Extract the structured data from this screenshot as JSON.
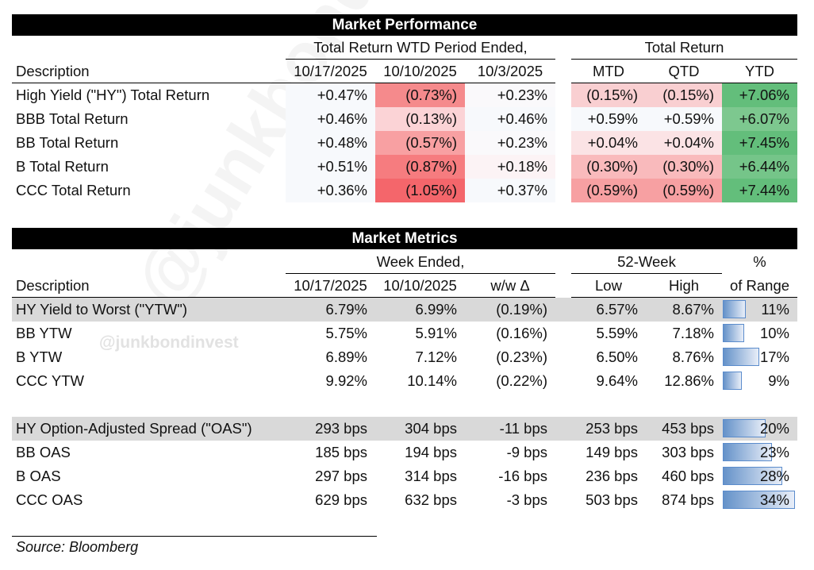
{
  "watermark": "@junkbondinvest",
  "performance": {
    "title": "Market Performance",
    "group1": "Total Return WTD Period Ended,",
    "group2": "Total Return",
    "headers": [
      "Description",
      "10/17/2025",
      "10/10/2025",
      "10/3/2025",
      "MTD",
      "QTD",
      "YTD"
    ],
    "rows": [
      {
        "label": "High Yield (\"HY\") Total Return",
        "values": [
          "+0.47%",
          "(0.73%)",
          "+0.23%",
          "(0.15%)",
          "(0.15%)",
          "+7.06%"
        ],
        "colors": [
          "#f7f9fc",
          "#f58a8c",
          "#faf9fb",
          "#f9cfd1",
          "#f9cfd1",
          "#63be7b"
        ]
      },
      {
        "label": "BBB Total Return",
        "values": [
          "+0.46%",
          "(0.13%)",
          "+0.46%",
          "+0.59%",
          "+0.59%",
          "+6.07%"
        ],
        "colors": [
          "#f7f9fc",
          "#fbd3d6",
          "#f7f9fc",
          "#f7f9fc",
          "#f7f9fc",
          "#7dc88f"
        ]
      },
      {
        "label": "BB Total Return",
        "values": [
          "+0.48%",
          "(0.57%)",
          "+0.23%",
          "+0.04%",
          "+0.04%",
          "+7.45%"
        ],
        "colors": [
          "#f7f9fc",
          "#f8a0a2",
          "#faf9fb",
          "#fbe3e5",
          "#fbe3e5",
          "#63be7b"
        ]
      },
      {
        "label": "B Total Return",
        "values": [
          "+0.51%",
          "(0.87%)",
          "+0.18%",
          "(0.30%)",
          "(0.30%)",
          "+6.44%"
        ],
        "colors": [
          "#f7f9fc",
          "#f67c7f",
          "#fcf3f5",
          "#f9babc",
          "#f9babc",
          "#75c589"
        ]
      },
      {
        "label": "CCC Total Return",
        "values": [
          "+0.36%",
          "(1.05%)",
          "+0.37%",
          "(0.59%)",
          "(0.59%)",
          "+7.44%"
        ],
        "colors": [
          "#f7f9fc",
          "#f4666b",
          "#f7f9fc",
          "#f7a0a2",
          "#f7a0a2",
          "#63be7b"
        ]
      }
    ]
  },
  "metrics": {
    "title": "Market Metrics",
    "group1": "Week Ended,",
    "group2": "52-Week",
    "group3": "%",
    "headers": [
      "Description",
      "10/17/2025",
      "10/10/2025",
      "w/w Δ",
      "Low",
      "High",
      "of Range"
    ],
    "bar_color": "#6592c9",
    "rows": [
      {
        "label": "HY Yield to Worst (\"YTW\")",
        "values": [
          "6.79%",
          "6.99%",
          "(0.19%)",
          "6.57%",
          "8.67%",
          "11%"
        ],
        "range_pct": 11,
        "highlight": true
      },
      {
        "label": "BB YTW",
        "values": [
          "5.75%",
          "5.91%",
          "(0.16%)",
          "5.59%",
          "7.18%",
          "10%"
        ],
        "range_pct": 10
      },
      {
        "label": "B YTW",
        "values": [
          "6.89%",
          "7.12%",
          "(0.23%)",
          "6.50%",
          "8.76%",
          "17%"
        ],
        "range_pct": 17
      },
      {
        "label": "CCC YTW",
        "values": [
          "9.92%",
          "10.14%",
          "(0.22%)",
          "9.64%",
          "12.86%",
          "9%"
        ],
        "range_pct": 9
      },
      null,
      {
        "label": "HY Option-Adjusted Spread (\"OAS\")",
        "values": [
          "293 bps",
          "304 bps",
          "-11 bps",
          "253 bps",
          "453 bps",
          "20%"
        ],
        "range_pct": 20,
        "highlight": true
      },
      {
        "label": "BB OAS",
        "values": [
          "185 bps",
          "194 bps",
          "-9 bps",
          "149 bps",
          "303 bps",
          "23%"
        ],
        "range_pct": 23
      },
      {
        "label": "B OAS",
        "values": [
          "297 bps",
          "314 bps",
          "-16 bps",
          "236 bps",
          "460 bps",
          "28%"
        ],
        "range_pct": 28
      },
      {
        "label": "CCC OAS",
        "values": [
          "629 bps",
          "632 bps",
          "-3 bps",
          "503 bps",
          "874 bps",
          "34%"
        ],
        "range_pct": 34
      }
    ]
  },
  "source": "Source: Bloomberg"
}
